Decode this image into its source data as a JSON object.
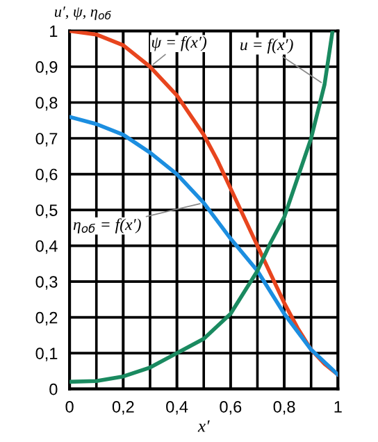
{
  "chart_data": {
    "type": "line",
    "xlabel": "x′",
    "ylabel": "u′, ψ, η$_{об}$",
    "xlim": [
      0,
      1
    ],
    "ylim": [
      0,
      1
    ],
    "xticks": [
      0,
      {
        "value": 0.2,
        "label": "0,2"
      },
      {
        "value": 0.4,
        "label": "0,4"
      },
      {
        "value": 0.6,
        "label": "0,6"
      },
      {
        "value": 0.8,
        "label": "0,8"
      },
      1
    ],
    "yticks": [
      0,
      {
        "value": 0.1,
        "label": "0,1"
      },
      {
        "value": 0.2,
        "label": "0,2"
      },
      {
        "value": 0.3,
        "label": "0,3"
      },
      {
        "value": 0.4,
        "label": "0,4"
      },
      {
        "value": 0.5,
        "label": "0,5"
      },
      {
        "value": 0.6,
        "label": "0,6"
      },
      {
        "value": 0.7,
        "label": "0,7"
      },
      {
        "value": 0.8,
        "label": "0,8"
      },
      {
        "value": 0.9,
        "label": "0,9"
      },
      1
    ],
    "grid": true,
    "marker": "none",
    "line_style": "solid",
    "series": [
      {
        "color": "#e8451e",
        "x": [
          0,
          0.1,
          0.2,
          0.3,
          0.4,
          0.5,
          0.55,
          0.6,
          0.65,
          0.7,
          0.75,
          0.8,
          0.85,
          0.9,
          0.95,
          1.0
        ],
        "values": [
          1.0,
          0.99,
          0.96,
          0.9,
          0.82,
          0.71,
          0.64,
          0.56,
          0.48,
          0.4,
          0.32,
          0.24,
          0.17,
          0.11,
          0.07,
          0.04
        ]
      },
      {
        "color": "#1c8ee0",
        "x": [
          0,
          0.1,
          0.2,
          0.3,
          0.4,
          0.5,
          0.6,
          0.7,
          0.8,
          0.9,
          1.0
        ],
        "values": [
          0.76,
          0.74,
          0.71,
          0.66,
          0.6,
          0.52,
          0.42,
          0.33,
          0.21,
          0.11,
          0.04
        ]
      },
      {
        "color": "#1a8a60",
        "x": [
          0,
          0.1,
          0.2,
          0.3,
          0.4,
          0.5,
          0.6,
          0.7,
          0.75,
          0.8,
          0.85,
          0.9,
          0.95,
          0.98
        ],
        "values": [
          0.02,
          0.022,
          0.035,
          0.06,
          0.1,
          0.14,
          0.21,
          0.33,
          0.41,
          0.48,
          0.59,
          0.7,
          0.85,
          1.0
        ]
      }
    ],
    "annotations": [
      {
        "text": "ψ = f(x′)",
        "x": 0.3,
        "y": 0.9
      },
      {
        "text": "u = f(x′)",
        "x": 0.95,
        "y": 0.85
      },
      {
        "text": "η$_{об}$ = f(x′)",
        "x": 0.5,
        "y": 0.52
      }
    ]
  }
}
